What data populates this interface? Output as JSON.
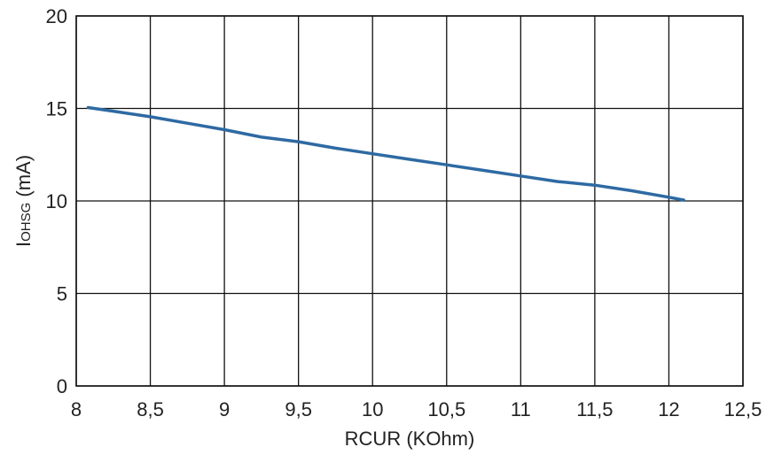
{
  "chart_data": {
    "type": "line",
    "xlabel": "RCUR (KOhm)",
    "ylabel": {
      "main": "I",
      "subscript": "OHSG",
      "unit": " (mA)"
    },
    "xlim": [
      8,
      12.5
    ],
    "ylim": [
      0,
      20
    ],
    "x_ticks": [
      8,
      8.5,
      9,
      9.5,
      10,
      10.5,
      11,
      11.5,
      12,
      12.5
    ],
    "x_tick_labels": [
      "8",
      "8,5",
      "9",
      "9,5",
      "10",
      "10,5",
      "11",
      "11,5",
      "12",
      "12,5"
    ],
    "y_ticks": [
      0,
      5,
      10,
      15,
      20
    ],
    "y_tick_labels": [
      "0",
      "5",
      "10",
      "15",
      "20"
    ],
    "grid": true,
    "series": [
      {
        "color": "#2e6aa3",
        "x": [
          8.08,
          8.25,
          8.5,
          8.75,
          9.0,
          9.25,
          9.5,
          9.75,
          10.0,
          10.25,
          10.5,
          10.75,
          11.0,
          11.25,
          11.5,
          11.75,
          12.0,
          12.1
        ],
        "y": [
          15.05,
          14.85,
          14.55,
          14.2,
          13.85,
          13.45,
          13.2,
          12.85,
          12.55,
          12.25,
          11.95,
          11.65,
          11.35,
          11.05,
          10.85,
          10.55,
          10.2,
          10.05
        ]
      }
    ]
  }
}
